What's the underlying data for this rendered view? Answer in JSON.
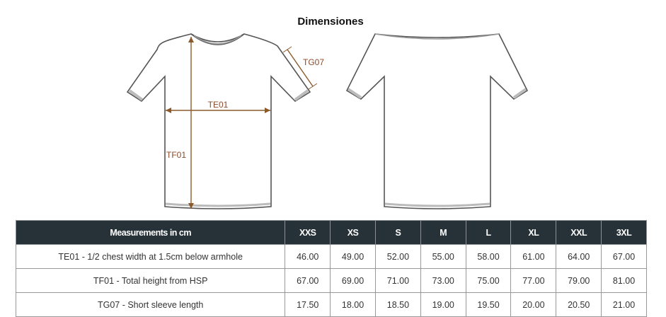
{
  "title": "Dimensiones",
  "diagram_labels": {
    "chest": "TE01",
    "height": "TF01",
    "sleeve": "TG07"
  },
  "colors": {
    "header_bg": "#263238",
    "measure_line": "#8b5a2b",
    "guide": "#f06ec8"
  },
  "table": {
    "header": "Measurements in cm",
    "sizes": [
      "XXS",
      "XS",
      "S",
      "M",
      "L",
      "XL",
      "XXL",
      "3XL"
    ],
    "rows": [
      {
        "label": "TE01 - 1/2 chest width at 1.5cm below armhole",
        "values": [
          "46.00",
          "49.00",
          "52.00",
          "55.00",
          "58.00",
          "61.00",
          "64.00",
          "67.00"
        ]
      },
      {
        "label": "TF01 - Total height from HSP",
        "values": [
          "67.00",
          "69.00",
          "71.00",
          "73.00",
          "75.00",
          "77.00",
          "79.00",
          "81.00"
        ]
      },
      {
        "label": "TG07 - Short sleeve length",
        "values": [
          "17.50",
          "18.00",
          "18.50",
          "19.00",
          "19.50",
          "20.00",
          "20.50",
          "21.00"
        ]
      }
    ]
  }
}
